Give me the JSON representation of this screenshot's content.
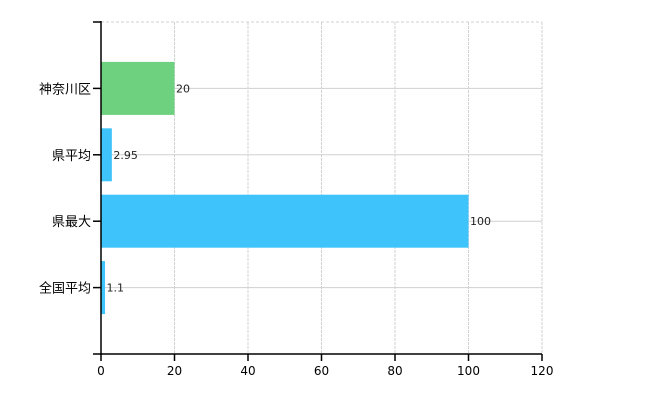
{
  "chart_data": {
    "type": "bar",
    "orientation": "horizontal",
    "categories": [
      "神奈川区",
      "県平均",
      "県最大",
      "全国平均"
    ],
    "values": [
      20,
      2.95,
      100,
      1.1
    ],
    "data_labels": [
      "20",
      "2.95",
      "100",
      "1.1"
    ],
    "bar_colors": [
      "#6dd17f",
      "#3ec3fb",
      "#3ec3fb",
      "#3ec3fb"
    ],
    "xlim": [
      0,
      120
    ],
    "xticks": [
      0,
      20,
      40,
      60,
      80,
      100,
      120
    ],
    "xtick_labels": [
      "0",
      "20",
      "40",
      "60",
      "80",
      "100",
      "120"
    ],
    "grid": true,
    "legend": "none",
    "title": "",
    "xlabel": "",
    "ylabel": ""
  }
}
